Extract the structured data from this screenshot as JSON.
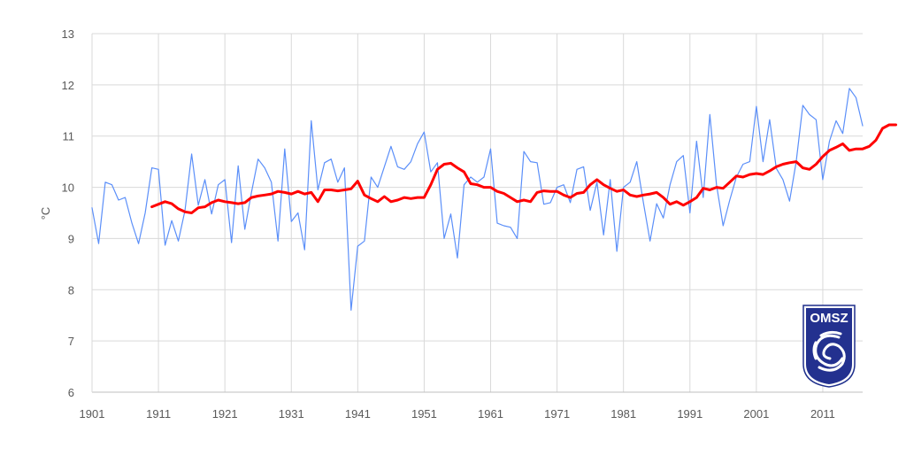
{
  "chart_data": {
    "type": "line",
    "title": "",
    "xlabel": "",
    "ylabel": "°C",
    "xlim": [
      1901,
      2017
    ],
    "ylim": [
      6,
      13
    ],
    "x_ticks": [
      1901,
      1911,
      1921,
      1931,
      1941,
      1951,
      1961,
      1971,
      1981,
      1991,
      2001,
      2011
    ],
    "y_ticks": [
      6,
      7,
      8,
      9,
      10,
      11,
      12,
      13
    ],
    "grid": true,
    "legend": "none",
    "series": [
      {
        "color": "#5b8ff9",
        "x_start": 1901,
        "values": [
          9.6,
          8.9,
          10.1,
          10.05,
          9.75,
          9.8,
          9.3,
          8.9,
          9.5,
          10.38,
          10.35,
          8.87,
          9.35,
          8.95,
          9.55,
          10.65,
          9.65,
          10.15,
          9.48,
          10.05,
          10.15,
          8.92,
          10.42,
          9.18,
          9.9,
          10.55,
          10.38,
          10.1,
          8.95,
          10.75,
          9.33,
          9.5,
          8.78,
          11.3,
          9.95,
          10.48,
          10.55,
          10.1,
          10.38,
          7.6,
          8.85,
          8.95,
          10.2,
          10.0,
          10.4,
          10.8,
          10.4,
          10.35,
          10.5,
          10.85,
          11.08,
          10.3,
          10.48,
          9.0,
          9.48,
          8.62,
          10.05,
          10.2,
          10.1,
          10.2,
          10.75,
          9.3,
          9.25,
          9.22,
          9.0,
          10.7,
          10.5,
          10.48,
          9.67,
          9.7,
          10.0,
          10.05,
          9.7,
          10.35,
          10.4,
          9.55,
          10.1,
          9.07,
          10.15,
          8.75,
          10.0,
          10.1,
          10.5,
          9.7,
          8.95,
          9.68,
          9.4,
          10.05,
          10.5,
          10.62,
          9.5,
          10.9,
          9.8,
          11.42,
          10.05,
          9.25,
          9.75,
          10.2,
          10.45,
          10.5,
          11.58,
          10.5,
          11.32,
          10.37,
          10.15,
          9.73,
          10.5,
          11.6,
          11.42,
          11.32,
          10.15,
          10.9,
          11.3,
          11.05,
          11.93,
          11.75,
          11.2
        ]
      },
      {
        "color": "#ff0000",
        "x_start": 1910,
        "values": [
          9.62,
          9.67,
          9.72,
          9.68,
          9.58,
          9.52,
          9.5,
          9.6,
          9.62,
          9.7,
          9.75,
          9.72,
          9.7,
          9.68,
          9.7,
          9.8,
          9.83,
          9.85,
          9.87,
          9.92,
          9.9,
          9.87,
          9.92,
          9.87,
          9.9,
          9.72,
          9.95,
          9.95,
          9.93,
          9.95,
          9.97,
          10.12,
          9.85,
          9.78,
          9.72,
          9.82,
          9.72,
          9.75,
          9.8,
          9.78,
          9.8,
          9.8,
          10.05,
          10.35,
          10.45,
          10.47,
          10.38,
          10.3,
          10.07,
          10.05,
          10.0,
          10.0,
          9.92,
          9.88,
          9.8,
          9.72,
          9.75,
          9.72,
          9.9,
          9.93,
          9.92,
          9.92,
          9.85,
          9.8,
          9.88,
          9.9,
          10.05,
          10.15,
          10.05,
          9.98,
          9.92,
          9.95,
          9.85,
          9.82,
          9.85,
          9.87,
          9.9,
          9.8,
          9.67,
          9.72,
          9.65,
          9.72,
          9.8,
          9.98,
          9.95,
          10.0,
          9.98,
          10.1,
          10.22,
          10.2,
          10.25,
          10.27,
          10.25,
          10.32,
          10.4,
          10.45,
          10.48,
          10.5,
          10.38,
          10.35,
          10.45,
          10.6,
          10.72,
          10.78,
          10.85,
          10.72,
          10.75,
          10.75,
          10.8,
          10.92,
          11.15,
          11.22,
          11.22
        ]
      }
    ]
  },
  "logo": {
    "text": "OMSZ"
  }
}
